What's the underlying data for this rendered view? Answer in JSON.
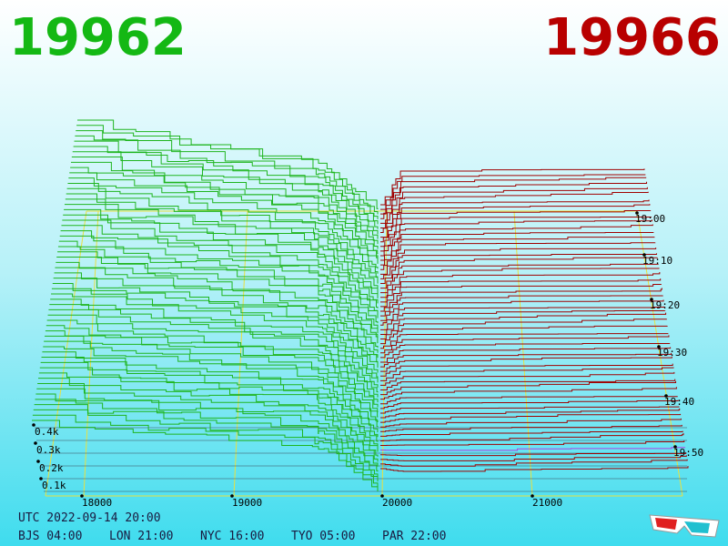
{
  "header": {
    "bid": "19962",
    "ask": "19966"
  },
  "price_labels": [
    "18000",
    "19000",
    "20000",
    "21000"
  ],
  "depth_labels": [
    "0.4k",
    "0.3k",
    "0.2k",
    "0.1k"
  ],
  "time_labels": [
    "19:00",
    "19:10",
    "19:20",
    "19:30",
    "19:40",
    "19:50"
  ],
  "clock": {
    "utc": "UTC 2022-09-14 20:00",
    "zones": [
      "BJS 04:00",
      "LON 21:00",
      "NYC 16:00",
      "TYO 05:00",
      "PAR 22:00"
    ]
  }
}
